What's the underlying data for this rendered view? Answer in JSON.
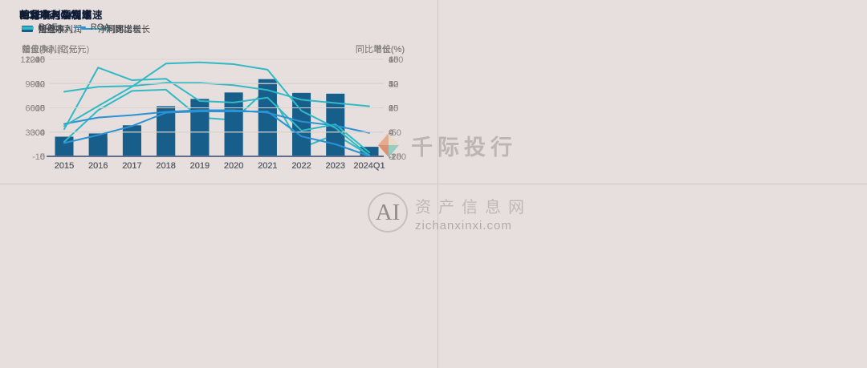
{
  "watermarks": {
    "brand": {
      "text": "千际投行"
    },
    "site": {
      "badge": "AI",
      "name": "资产信息网",
      "domain": "zichanxinxi.com"
    }
  },
  "theme": {
    "background": "#e6dfdd",
    "bar_color": "#175f8a",
    "teal_line": "#31b9c5",
    "blue_line": "#2b92d4",
    "grid_color": "#d9d3d0",
    "axis_color": "#5f6e8c"
  },
  "chart_data": [
    {
      "type": "bar",
      "title": "营业收入及增速",
      "categories": [
        "2015",
        "2016",
        "2017",
        "2018",
        "2019",
        "2020",
        "2021",
        "2022",
        "2023",
        "2024Q1"
      ],
      "left_axis": {
        "unit": "营业收入(亿元)",
        "ticks": [
          12000,
          9000,
          6000,
          3000,
          0
        ]
      },
      "right_axis": {
        "unit": "同比增长(%)",
        "ticks": [
          60,
          40,
          20,
          0,
          -20
        ]
      },
      "grid": true,
      "legend_position": "top-left",
      "series": [
        {
          "name": "营业收入",
          "type": "bar",
          "axis": "left",
          "color": "#175f8a",
          "values": [
            2430,
            2830,
            3840,
            5290,
            5980,
            6540,
            9000,
            7850,
            7750,
            1180
          ]
        },
        {
          "name": "同比增长",
          "type": "line",
          "axis": "right",
          "color": "#31b9c5",
          "values": [
            -8,
            18,
            34,
            35,
            12,
            10,
            36,
            -13,
            -2,
            -19
          ]
        }
      ]
    },
    {
      "type": "bar",
      "title": "归母净利润及增速",
      "categories": [
        "2015",
        "2016",
        "2017",
        "2018",
        "2019",
        "2020",
        "2021",
        "2022",
        "2023",
        "2024Q1"
      ],
      "left_axis": {
        "unit": "归母净利润(亿元)",
        "ticks": [
          1200,
          900,
          600,
          300,
          0
        ]
      },
      "right_axis": {
        "unit": "同比增长(%)",
        "ticks": [
          100,
          50,
          0,
          -50,
          -100
        ]
      },
      "grid": true,
      "legend_position": "top-left",
      "series": [
        {
          "name": "归母净利润",
          "type": "bar",
          "axis": "left",
          "color": "#175f8a",
          "values": [
            120,
            230,
            380,
            620,
            710,
            790,
            955,
            520,
            330,
            8
          ]
        },
        {
          "name": "同比增长",
          "type": "line",
          "axis": "right",
          "color": "#31b9c5",
          "values": [
            -44,
            83,
            57,
            60,
            14,
            11,
            21,
            -47,
            -34,
            -92
          ]
        }
      ]
    },
    {
      "type": "line",
      "title": "毛利率与净利率",
      "categories": [
        "2015",
        "2016",
        "2017",
        "2018",
        "2019",
        "2020",
        "2021",
        "2022",
        "2023",
        "2024Q1"
      ],
      "left_axis": {
        "unit": "单位(%)",
        "ticks": [
          45,
          30,
          15,
          0,
          -15
        ]
      },
      "right_axis": {
        "unit": "单位(%)",
        "ticks": [
          45,
          30,
          15,
          0,
          -15
        ]
      },
      "grid": true,
      "legend_position": "top-left",
      "series": [
        {
          "name": "毛利率",
          "type": "line",
          "axis": "left",
          "color": "#31b9c5",
          "values": [
            25,
            28,
            28.5,
            30.5,
            30.5,
            29,
            26,
            20,
            18,
            16
          ]
        },
        {
          "name": "净利率",
          "type": "line",
          "axis": "left",
          "color": "#2b92d4",
          "values": [
            5,
            9,
            10.5,
            12.5,
            13.5,
            13.5,
            12,
            6.5,
            4,
            -0.5
          ]
        }
      ]
    },
    {
      "type": "line",
      "title": "ROE与ROA",
      "categories": [
        "2015",
        "2016",
        "2017",
        "2018",
        "2019",
        "2020",
        "2021",
        "2022",
        "2023",
        "2024Q1"
      ],
      "left_axis": {
        "unit": "单位(%)",
        "ticks": [
          16,
          12,
          8,
          4,
          0
        ]
      },
      "right_axis": {
        "unit": "单位(%)",
        "ticks": [
          16,
          12,
          8,
          4,
          0
        ]
      },
      "grid": true,
      "legend_position": "top-left",
      "series": [
        {
          "name": "ROE",
          "type": "line",
          "axis": "left",
          "color": "#31b9c5",
          "values": [
            5,
            8.3,
            11.5,
            15.3,
            15.5,
            15.2,
            14.3,
            7.5,
            4.7,
            0.1
          ]
        },
        {
          "name": "ROA",
          "type": "line",
          "axis": "left",
          "color": "#2b92d4",
          "values": [
            2.2,
            3.5,
            5,
            7.2,
            7.4,
            7.4,
            7.4,
            3.3,
            2,
            0.05
          ]
        }
      ]
    }
  ]
}
